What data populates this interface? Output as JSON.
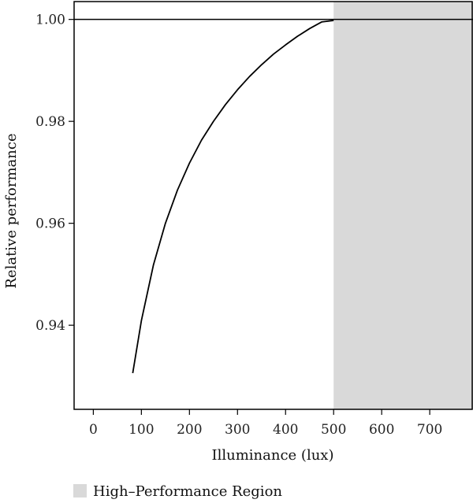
{
  "chart_data": {
    "type": "line",
    "title": "",
    "xlabel": "Illuminance (lux)",
    "ylabel": "Relative performance",
    "xlim": [
      -40,
      790
    ],
    "ylim": [
      0.9235,
      1.0035
    ],
    "xticks": [
      0,
      100,
      200,
      300,
      400,
      500,
      600,
      700
    ],
    "xtick_labels": [
      "0",
      "100",
      "200",
      "300",
      "400",
      "500",
      "600",
      "700"
    ],
    "yticks": [
      0.94,
      0.96,
      0.98,
      1.0
    ],
    "ytick_labels": [
      "0.94",
      "0.96",
      "0.98",
      "1.00"
    ],
    "grid": false,
    "series": [
      {
        "color": "#000000",
        "x": [
          82,
          100,
          125,
          150,
          175,
          200,
          225,
          250,
          275,
          300,
          325,
          350,
          375,
          400,
          425,
          450,
          475,
          500
        ],
        "y": [
          0.9306,
          0.9409,
          0.9518,
          0.96,
          0.9665,
          0.9718,
          0.9763,
          0.98,
          0.9833,
          0.9862,
          0.9888,
          0.9911,
          0.9932,
          0.995,
          0.9967,
          0.9982,
          0.9995,
          0.9998
        ]
      }
    ],
    "reference_line": {
      "y": 1.0,
      "color": "#000000"
    },
    "shaded_region": {
      "x_start": 500,
      "x_end": 790,
      "color": "#d9d9d9",
      "label": "High–Performance Region"
    },
    "legend": {
      "placement": "bottom-left",
      "entries": [
        {
          "label": "High–Performance Region",
          "color": "#d9d9d9"
        }
      ]
    }
  }
}
